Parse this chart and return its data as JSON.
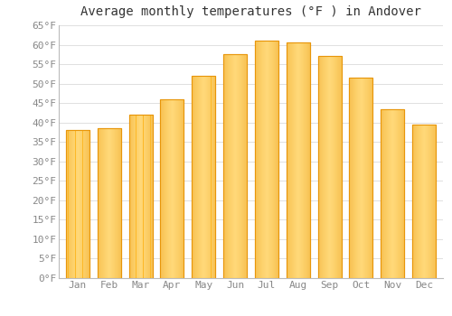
{
  "title": "Average monthly temperatures (°F ) in Andover",
  "months": [
    "Jan",
    "Feb",
    "Mar",
    "Apr",
    "May",
    "Jun",
    "Jul",
    "Aug",
    "Sep",
    "Oct",
    "Nov",
    "Dec"
  ],
  "values": [
    38,
    38.5,
    42,
    46,
    52,
    57.5,
    61,
    60.5,
    57,
    51.5,
    43.5,
    39.5
  ],
  "bar_color_face": "#FDB827",
  "bar_color_edge": "#E8960A",
  "bar_color_light": "#FFD878",
  "ylim": [
    0,
    65
  ],
  "ytick_step": 5,
  "background_color": "#ffffff",
  "grid_color": "#e0e0e0",
  "title_fontsize": 10,
  "tick_fontsize": 8,
  "tick_label_color": "#888888",
  "font_family": "monospace"
}
